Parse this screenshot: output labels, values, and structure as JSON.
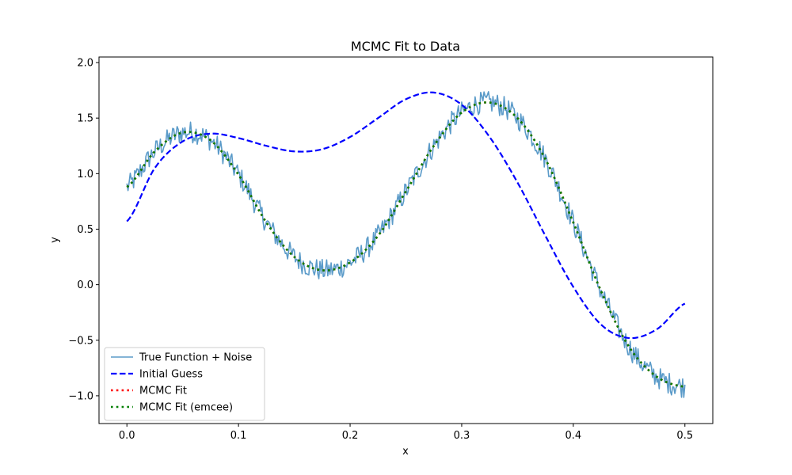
{
  "chart_data": {
    "type": "line",
    "title": "MCMC Fit to Data",
    "xlabel": "x",
    "ylabel": "y",
    "xlim": [
      -0.025,
      0.525
    ],
    "ylim": [
      -1.25,
      2.05
    ],
    "xticks": [
      0.0,
      0.1,
      0.2,
      0.3,
      0.4,
      0.5
    ],
    "xtick_labels": [
      "0.0",
      "0.1",
      "0.2",
      "0.3",
      "0.4",
      "0.5"
    ],
    "yticks": [
      -1.0,
      -0.5,
      0.0,
      0.5,
      1.0,
      1.5,
      2.0
    ],
    "ytick_labels": [
      "−1.0",
      "−0.5",
      "0.0",
      "0.5",
      "1.0",
      "1.5",
      "2.0"
    ],
    "grid": false,
    "legend_position": "lower-left",
    "series": [
      {
        "name": "True Function + Noise",
        "style": "solid",
        "color": "#5b9bc9",
        "x": [
          0.0,
          0.025,
          0.05,
          0.075,
          0.1,
          0.125,
          0.15,
          0.175,
          0.2,
          0.225,
          0.25,
          0.275,
          0.3,
          0.325,
          0.35,
          0.375,
          0.4,
          0.425,
          0.45,
          0.475,
          0.5
        ],
        "y": [
          0.88,
          1.2,
          1.37,
          1.3,
          0.99,
          0.56,
          0.25,
          0.13,
          0.2,
          0.44,
          0.84,
          1.25,
          1.55,
          1.64,
          1.5,
          1.13,
          0.56,
          -0.06,
          -0.56,
          -0.83,
          -0.92
        ],
        "noise_amplitude": 0.1
      },
      {
        "name": "Initial Guess",
        "style": "dashed",
        "color": "#0000ff",
        "x": [
          0.0,
          0.025,
          0.05,
          0.075,
          0.1,
          0.125,
          0.15,
          0.175,
          0.2,
          0.225,
          0.25,
          0.275,
          0.3,
          0.325,
          0.35,
          0.375,
          0.4,
          0.425,
          0.45,
          0.475,
          0.5
        ],
        "y": [
          0.57,
          1.05,
          1.29,
          1.36,
          1.32,
          1.25,
          1.2,
          1.22,
          1.33,
          1.5,
          1.67,
          1.73,
          1.62,
          1.33,
          0.92,
          0.44,
          -0.02,
          -0.36,
          -0.48,
          -0.4,
          -0.17
        ]
      },
      {
        "name": "MCMC Fit",
        "style": "dotted",
        "color": "#ff0000",
        "x": [
          0.0,
          0.025,
          0.05,
          0.075,
          0.1,
          0.125,
          0.15,
          0.175,
          0.2,
          0.225,
          0.25,
          0.275,
          0.3,
          0.325,
          0.35,
          0.375,
          0.4,
          0.425,
          0.45,
          0.475,
          0.5
        ],
        "y": [
          0.88,
          1.2,
          1.37,
          1.3,
          0.99,
          0.56,
          0.25,
          0.13,
          0.2,
          0.44,
          0.84,
          1.25,
          1.55,
          1.64,
          1.5,
          1.13,
          0.56,
          -0.06,
          -0.56,
          -0.83,
          -0.92
        ]
      },
      {
        "name": "MCMC Fit (emcee)",
        "style": "dotted",
        "color": "#008000",
        "x": [
          0.0,
          0.025,
          0.05,
          0.075,
          0.1,
          0.125,
          0.15,
          0.175,
          0.2,
          0.225,
          0.25,
          0.275,
          0.3,
          0.325,
          0.35,
          0.375,
          0.4,
          0.425,
          0.45,
          0.475,
          0.5
        ],
        "y": [
          0.88,
          1.2,
          1.37,
          1.3,
          0.99,
          0.56,
          0.25,
          0.13,
          0.2,
          0.44,
          0.84,
          1.25,
          1.55,
          1.64,
          1.5,
          1.13,
          0.56,
          -0.06,
          -0.56,
          -0.83,
          -0.92
        ]
      }
    ]
  }
}
